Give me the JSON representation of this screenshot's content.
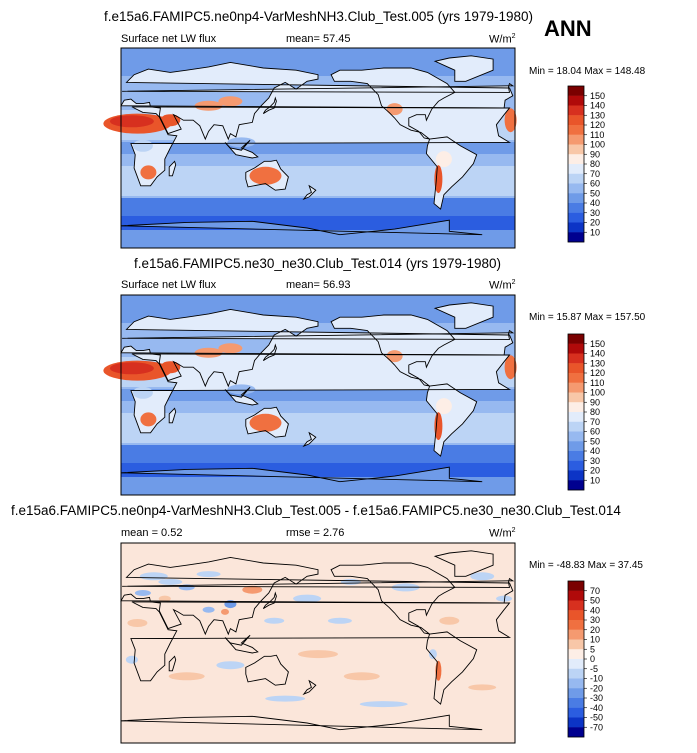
{
  "season": "ANN",
  "panels": [
    {
      "title": "f.e15a6.FAMIPC5.ne0np4-VarMeshNH3.Club_Test.005 (yrs 1979-1980)",
      "left": "Surface net LW flux",
      "mid": "mean=  57.45",
      "units": "W/m",
      "units_sup": "2",
      "minmax": "Min =  18.04 Max = 148.48"
    },
    {
      "title": "f.e15a6.FAMIPC5.ne30_ne30.Club_Test.014 (yrs 1979-1980)",
      "left": "Surface net LW flux",
      "mid": "mean=  56.93",
      "units": "W/m",
      "units_sup": "2",
      "minmax": "Min =  15.87 Max = 157.50"
    },
    {
      "title": "f.e15a6.FAMIPC5.ne0np4-VarMeshNH3.Club_Test.005 - f.e15a6.FAMIPC5.ne30_ne30.Club_Test.014",
      "left": "mean =   0.52",
      "mid": "rmse =   2.76",
      "units": "W/m",
      "units_sup": "2",
      "minmax": "Min = -48.83  Max =  37.45"
    }
  ],
  "chart_data": [
    {
      "type": "heatmap",
      "title": "f.e15a6.FAMIPC5.ne0np4-VarMeshNH3.Club_Test.005 (yrs 1979-1980)",
      "variable": "Surface net LW flux",
      "units": "W/m2",
      "mean": 57.45,
      "min": 18.04,
      "max": 148.48,
      "colorbar_levels": [
        150,
        140,
        130,
        120,
        110,
        100,
        90,
        80,
        70,
        60,
        50,
        40,
        30,
        20,
        10
      ],
      "colorbar_colors": [
        "#7a0000",
        "#b00a0a",
        "#d7301f",
        "#e9552a",
        "#f07040",
        "#f59a70",
        "#f8c7a8",
        "#fdeee6",
        "#e2ecfb",
        "#bcd4f5",
        "#97b9f0",
        "#6f9be8",
        "#4a7ce4",
        "#2b5de0",
        "#0c34c6",
        "#00008f"
      ]
    },
    {
      "type": "heatmap",
      "title": "f.e15a6.FAMIPC5.ne30_ne30.Club_Test.014 (yrs 1979-1980)",
      "variable": "Surface net LW flux",
      "units": "W/m2",
      "mean": 56.93,
      "min": 15.87,
      "max": 157.5,
      "colorbar_levels": [
        150,
        140,
        130,
        120,
        110,
        100,
        90,
        80,
        70,
        60,
        50,
        40,
        30,
        20,
        10
      ],
      "colorbar_colors": [
        "#7a0000",
        "#b00a0a",
        "#d7301f",
        "#e9552a",
        "#f07040",
        "#f59a70",
        "#f8c7a8",
        "#fdeee6",
        "#e2ecfb",
        "#bcd4f5",
        "#97b9f0",
        "#6f9be8",
        "#4a7ce4",
        "#2b5de0",
        "#0c34c6",
        "#00008f"
      ]
    },
    {
      "type": "heatmap",
      "title": "f.e15a6.FAMIPC5.ne0np4-VarMeshNH3.Club_Test.005 - f.e15a6.FAMIPC5.ne30_ne30.Club_Test.014",
      "units": "W/m2",
      "mean": 0.52,
      "rmse": 2.76,
      "min": -48.83,
      "max": 37.45,
      "colorbar_levels": [
        70,
        50,
        40,
        30,
        20,
        10,
        5,
        0,
        -5,
        -10,
        -20,
        -30,
        -40,
        -50,
        -70
      ],
      "colorbar_colors": [
        "#7a0000",
        "#b00a0a",
        "#d7301f",
        "#e9552a",
        "#f07040",
        "#f59a70",
        "#f8c7a8",
        "#fdeee6",
        "#e2ecfb",
        "#bcd4f5",
        "#97b9f0",
        "#6f9be8",
        "#4a7ce4",
        "#2b5de0",
        "#0c34c6",
        "#00008f"
      ]
    }
  ]
}
